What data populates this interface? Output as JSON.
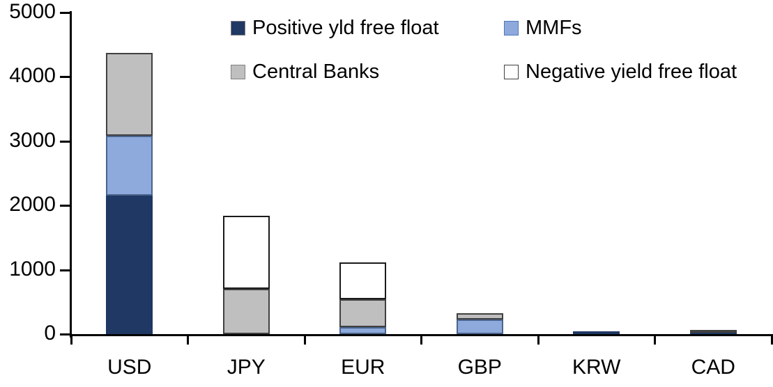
{
  "chart_data": {
    "type": "bar",
    "stacked": true,
    "title": "",
    "xlabel": "",
    "ylabel": "",
    "categories": [
      "USD",
      "JPY",
      "EUR",
      "GBP",
      "KRW",
      "CAD"
    ],
    "series": [
      {
        "name": "Positive yld free float",
        "color": "#1F3864",
        "stroke": "#1F3864",
        "stroke_w": 1,
        "values": [
          2150,
          0,
          0,
          0,
          45,
          30
        ]
      },
      {
        "name": "MMFs",
        "color": "#8EA9DB",
        "stroke": "#4A648C",
        "stroke_w": 2,
        "values": [
          930,
          0,
          110,
          230,
          0,
          0
        ]
      },
      {
        "name": "Central Banks",
        "color": "#BFBFBF",
        "stroke": "#404040",
        "stroke_w": 2,
        "values": [
          1290,
          700,
          430,
          100,
          0,
          30
        ]
      },
      {
        "name": "Negative yield free float",
        "color": "#FFFFFF",
        "stroke": "#1A1A1A",
        "stroke_w": 2,
        "values": [
          0,
          1140,
          570,
          0,
          0,
          0
        ]
      }
    ],
    "totals": [
      4370,
      1840,
      1110,
      330,
      45,
      60
    ],
    "ylim": [
      0,
      5000
    ],
    "yticks": [
      0,
      1000,
      2000,
      3000,
      4000,
      5000
    ],
    "grid": false,
    "legend_position": "top",
    "legend": {
      "rows": [
        [
          "Positive yld free float",
          "MMFs"
        ],
        [
          "Central Banks",
          "Negative yield free float"
        ]
      ],
      "swatch_borders": {
        "Positive yld free float": "#808080",
        "MMFs": "#4F77BE",
        "Central Banks": "#808080",
        "Negative yield free float": "#404040"
      }
    },
    "axis_color": "#000000"
  }
}
